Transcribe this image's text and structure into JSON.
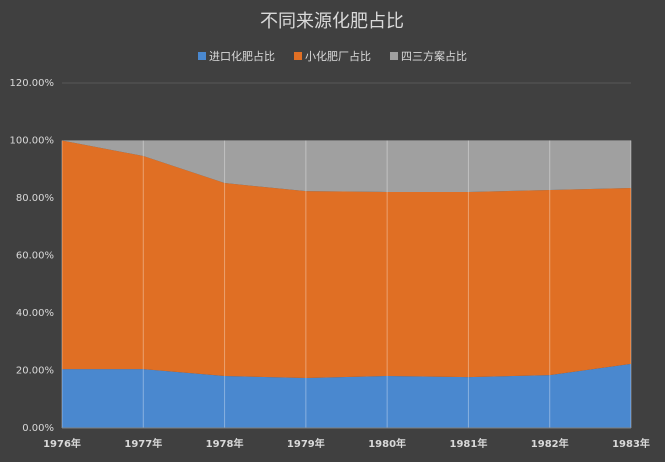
{
  "chart_data": {
    "type": "stacked-area",
    "title": "不同来源化肥占比",
    "categories": [
      "1976年",
      "1977年",
      "1978年",
      "1979年",
      "1980年",
      "1981年",
      "1982年",
      "1983年"
    ],
    "series": [
      {
        "name": "进口化肥占比",
        "color": "#4a88cf",
        "values": [
          20.5,
          20.5,
          18.1,
          17.4,
          18.1,
          17.7,
          18.4,
          22.3
        ]
      },
      {
        "name": "小化肥厂占比",
        "color": "#e06f24",
        "values": [
          79.5,
          74.1,
          67.1,
          65,
          64,
          64.4,
          64.4,
          61.2
        ]
      },
      {
        "name": "四三方案占比",
        "color": "#a0a0a0",
        "values": [
          0,
          5.4,
          14.8,
          17.6,
          17.9,
          17.9,
          17.2,
          16.5
        ]
      }
    ],
    "ylim": [
      0,
      120
    ],
    "yticks": [
      {
        "value": 0,
        "label": "0.00%"
      },
      {
        "value": 20,
        "label": "20.00%"
      },
      {
        "value": 40,
        "label": "40.00%"
      },
      {
        "value": 60,
        "label": "60.00%"
      },
      {
        "value": 80,
        "label": "80.00%"
      },
      {
        "value": 100,
        "label": "100.00%"
      },
      {
        "value": 120,
        "label": "120.00%"
      }
    ],
    "grid": true
  }
}
